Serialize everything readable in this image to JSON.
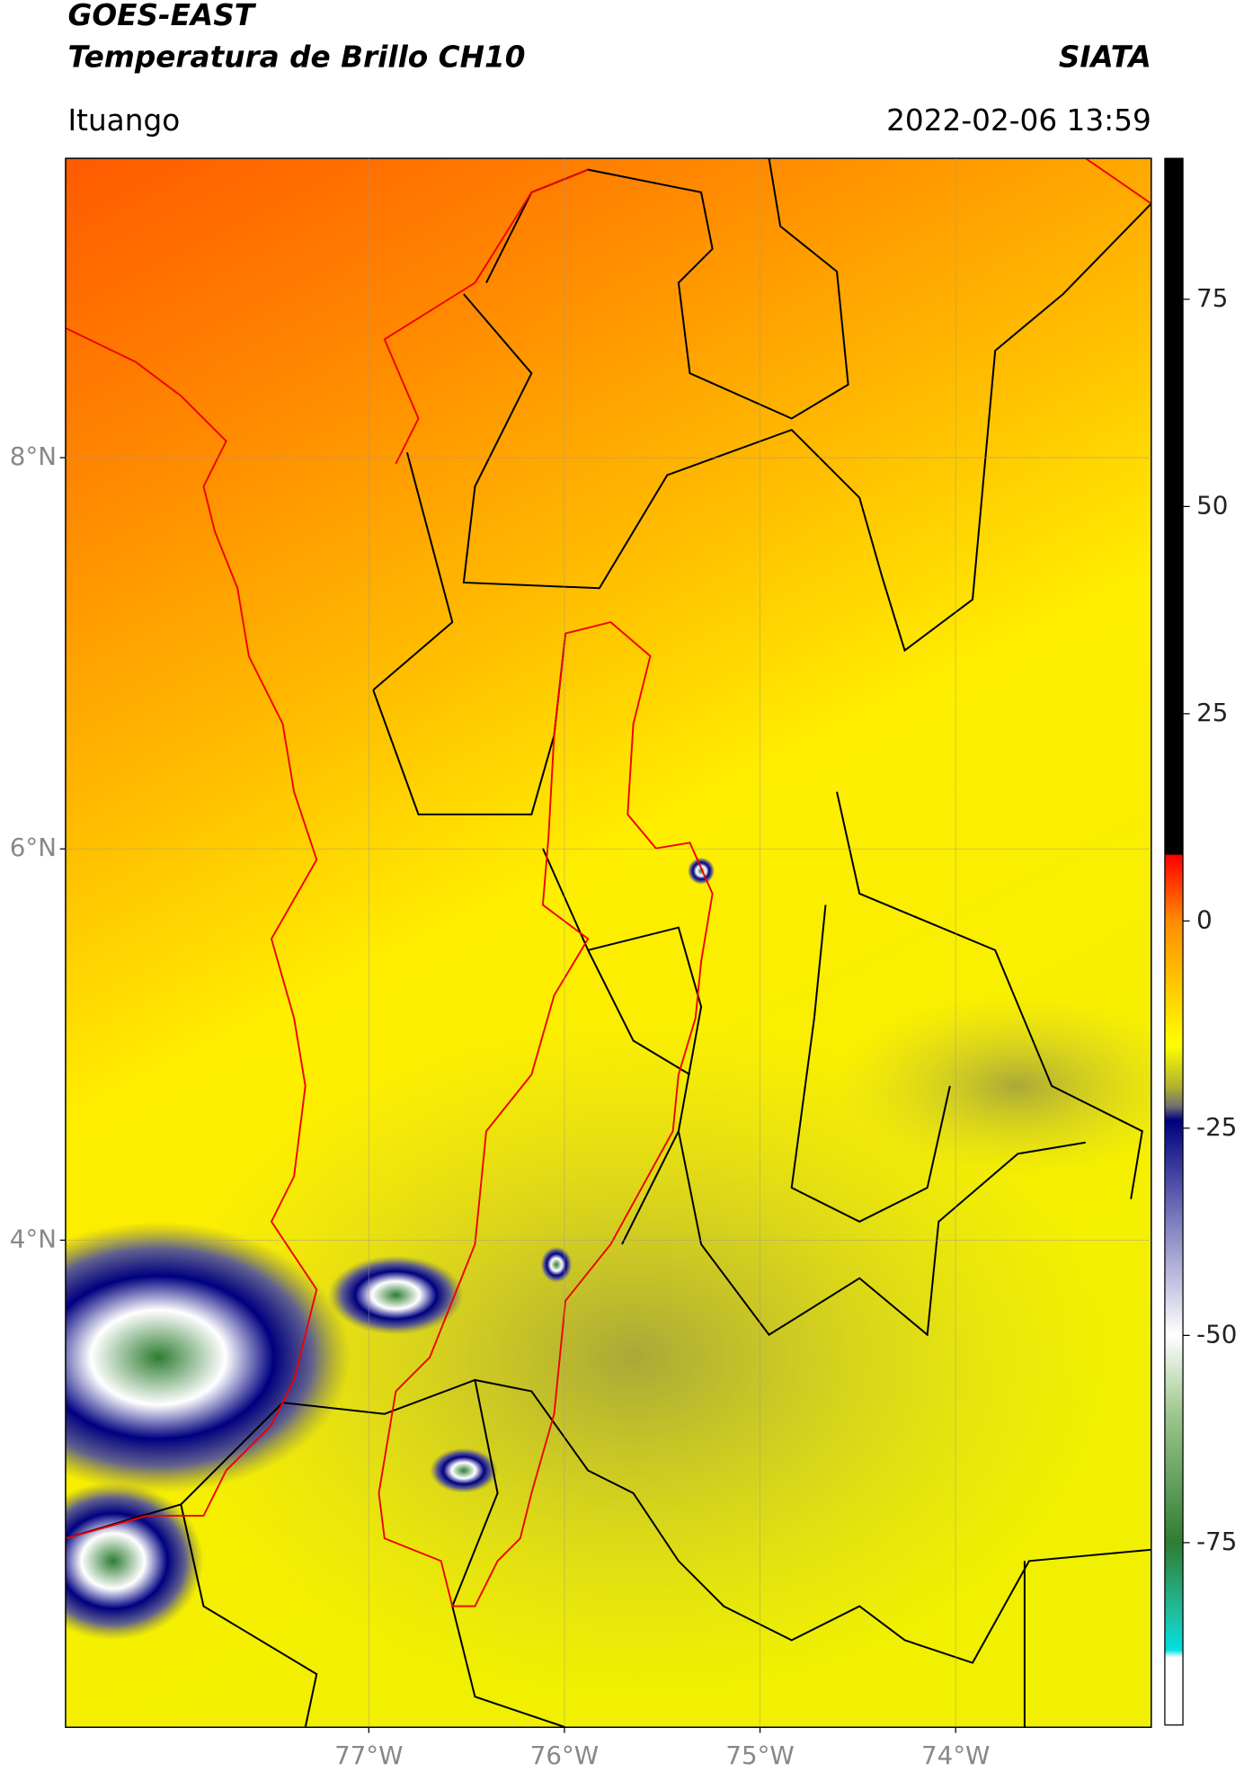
{
  "header": {
    "title": "GOES-EAST",
    "subtitle": "Temperatura de Brillo CH10",
    "source": "SIATA",
    "location": "Ituango",
    "datetime": "2022-02-06 13:59"
  },
  "chart_data": {
    "type": "map",
    "xlim": [
      -78.55,
      -73.0
    ],
    "ylim": [
      1.51,
      9.53
    ],
    "xticks": [
      {
        "value": -77,
        "label": "77°W"
      },
      {
        "value": -76,
        "label": "76°W"
      },
      {
        "value": -75,
        "label": "75°W"
      },
      {
        "value": -74,
        "label": "74°W"
      }
    ],
    "yticks": [
      {
        "value": 4,
        "label": "4°N"
      },
      {
        "value": 6,
        "label": "6°N"
      },
      {
        "value": 8,
        "label": "8°N"
      }
    ],
    "grid": true,
    "colorbar": {
      "lim": [
        -97,
        92
      ],
      "ticks": [
        75,
        50,
        25,
        0,
        -25,
        -50,
        -75
      ]
    }
  }
}
